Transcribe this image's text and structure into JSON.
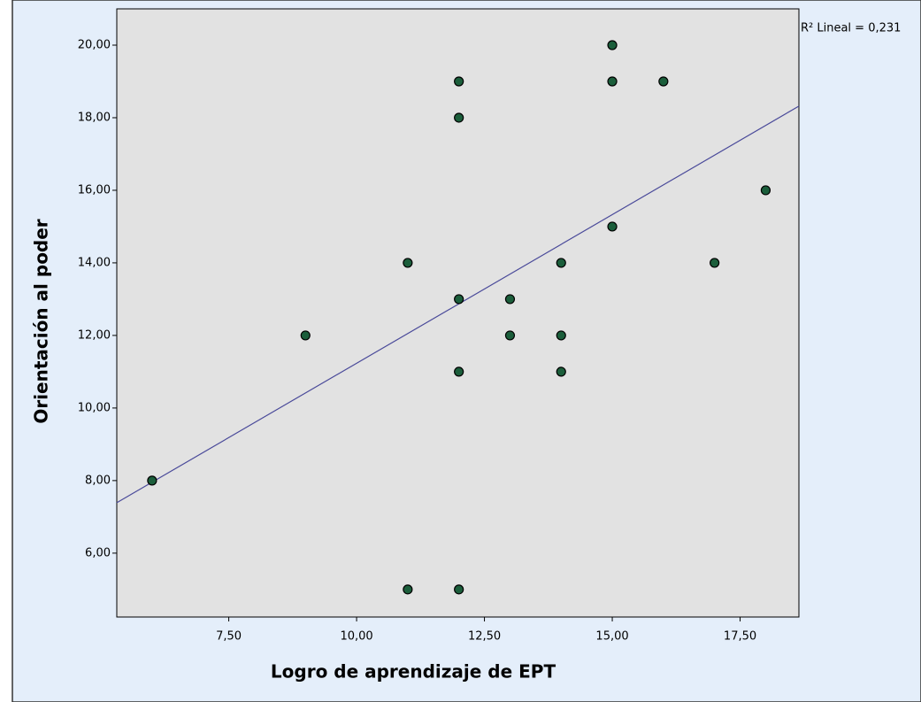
{
  "chart_data": {
    "type": "scatter",
    "x_label": "Logro de aprendizaje de EPT",
    "y_label": "Orientación al poder",
    "annotation": "R² Lineal = 0,231",
    "x": [
      6,
      9,
      11,
      11,
      12,
      12,
      12,
      12,
      12,
      13,
      13,
      14,
      14,
      14,
      15,
      15,
      15,
      16,
      17,
      18
    ],
    "values": [
      8,
      12,
      14,
      5,
      19,
      18,
      13,
      11,
      5,
      13,
      12,
      14,
      12,
      11,
      20,
      19,
      15,
      19,
      14,
      16
    ],
    "color": "#1b5e3b",
    "fit_line": {
      "x": [
        5.31,
        18.65
      ],
      "y": [
        7.39,
        18.32
      ],
      "color": "#4a4a9a"
    },
    "xlim": [
      5.31,
      18.65
    ],
    "ylim": [
      4.24,
      21.0
    ],
    "xticks": [
      {
        "value": 7.5,
        "label": "7,50"
      },
      {
        "value": 10,
        "label": "10,00"
      },
      {
        "value": 12.5,
        "label": "12,50"
      },
      {
        "value": 15,
        "label": "15,00"
      },
      {
        "value": 17.5,
        "label": "17,50"
      }
    ],
    "yticks": [
      {
        "value": 6,
        "label": "6,00"
      },
      {
        "value": 8,
        "label": "8,00"
      },
      {
        "value": 10,
        "label": "10,00"
      },
      {
        "value": 12,
        "label": "12,00"
      },
      {
        "value": 14,
        "label": "14,00"
      },
      {
        "value": 16,
        "label": "16,00"
      },
      {
        "value": 18,
        "label": "18,00"
      },
      {
        "value": 20,
        "label": "20,00"
      }
    ]
  }
}
